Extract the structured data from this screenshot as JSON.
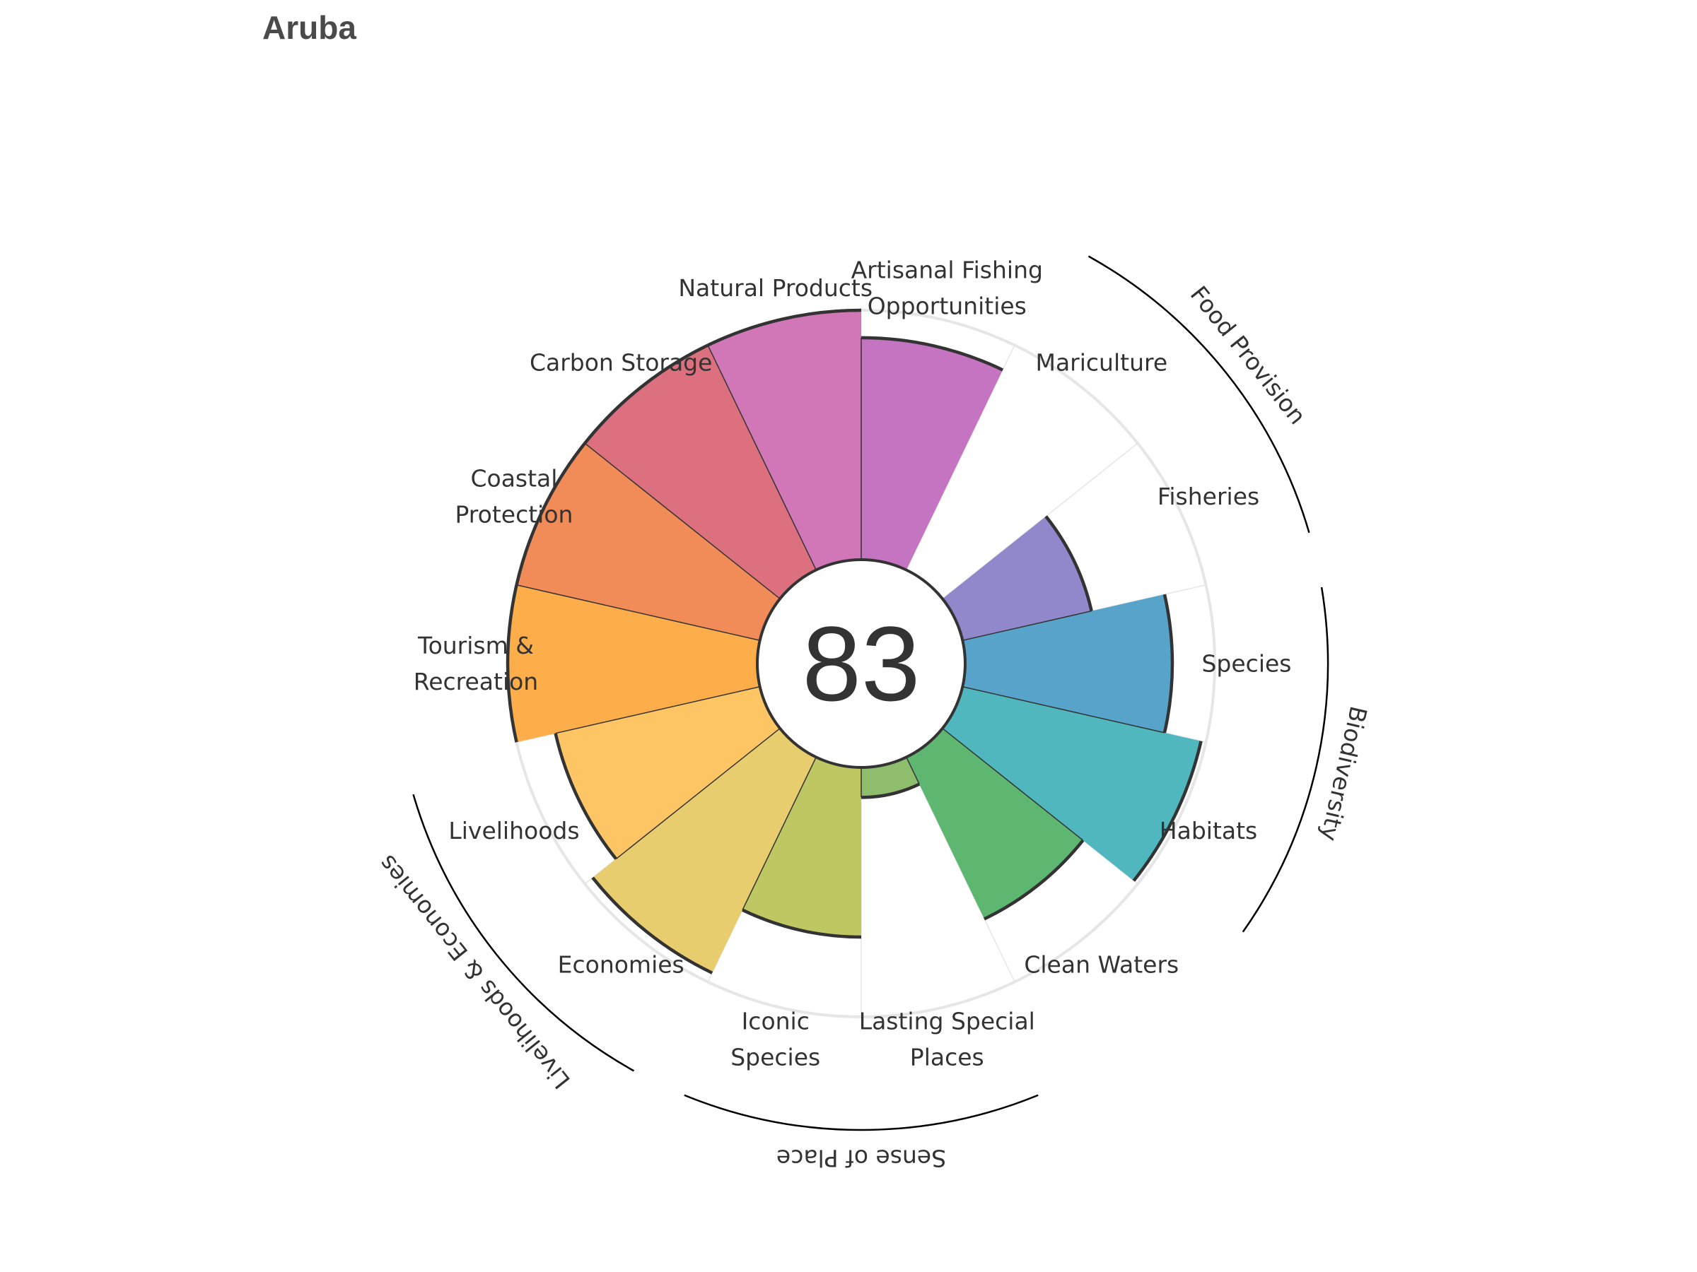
{
  "title": "Aruba",
  "chart_data": {
    "type": "polar-bar",
    "title": "Aruba",
    "center_score": "83",
    "r_range": [
      0,
      100
    ],
    "categories": [
      {
        "name": "Fisheries",
        "label_lines": [
          "Fisheries"
        ],
        "value": 53,
        "color": "#9088cb",
        "group": "Food Provision"
      },
      {
        "name": "Mariculture",
        "label_lines": [
          "Mariculture"
        ],
        "value": 0,
        "color": "#9088cb",
        "group": "Food Provision"
      },
      {
        "name": "Artisanal Fishing Opportunities",
        "label_lines": [
          "Artisanal Fishing",
          "Opportunities"
        ],
        "value": 89,
        "color": "#c474c1",
        "group": null
      },
      {
        "name": "Natural Products",
        "label_lines": [
          "Natural Products"
        ],
        "value": 100,
        "color": "#d177b7",
        "group": null
      },
      {
        "name": "Carbon Storage",
        "label_lines": [
          "Carbon Storage"
        ],
        "value": 100,
        "color": "#dd707f",
        "group": null
      },
      {
        "name": "Coastal Protection",
        "label_lines": [
          "Coastal",
          "Protection"
        ],
        "value": 100,
        "color": "#f18b57",
        "group": null
      },
      {
        "name": "Tourism & Recreation",
        "label_lines": [
          "Tourism &",
          "Recreation"
        ],
        "value": 100,
        "color": "#fdae4b",
        "group": null
      },
      {
        "name": "Livelihoods",
        "label_lines": [
          "Livelihoods"
        ],
        "value": 84,
        "color": "#fdc563",
        "group": "Livelihoods & Economies"
      },
      {
        "name": "Economies",
        "label_lines": [
          "Economies"
        ],
        "value": 96,
        "color": "#e8cd6e",
        "group": "Livelihoods & Economies"
      },
      {
        "name": "Iconic Species",
        "label_lines": [
          "Iconic",
          "Species"
        ],
        "value": 68,
        "color": "#bec762",
        "group": "Sense of Place"
      },
      {
        "name": "Lasting Special Places",
        "label_lines": [
          "Lasting Special",
          "Places"
        ],
        "value": 12,
        "color": "#8fbd6e",
        "group": "Sense of Place"
      },
      {
        "name": "Clean Waters",
        "label_lines": [
          "Clean Waters"
        ],
        "value": 72,
        "color": "#5db771",
        "group": null
      },
      {
        "name": "Habitats",
        "label_lines": [
          "Habitats"
        ],
        "value": 98,
        "color": "#4fb7bd",
        "group": "Biodiversity"
      },
      {
        "name": "Species",
        "label_lines": [
          "Species"
        ],
        "value": 83,
        "color": "#58a3ca",
        "group": "Biodiversity"
      }
    ],
    "groups": [
      {
        "name": "Food Provision",
        "members": [
          "Fisheries",
          "Mariculture"
        ]
      },
      {
        "name": "Biodiversity",
        "members": [
          "Species",
          "Habitats"
        ]
      },
      {
        "name": "Sense of Place",
        "members": [
          "Iconic Species",
          "Lasting Special Places"
        ]
      },
      {
        "name": "Livelihoods & Economies",
        "members": [
          "Livelihoods",
          "Economies"
        ]
      }
    ]
  }
}
